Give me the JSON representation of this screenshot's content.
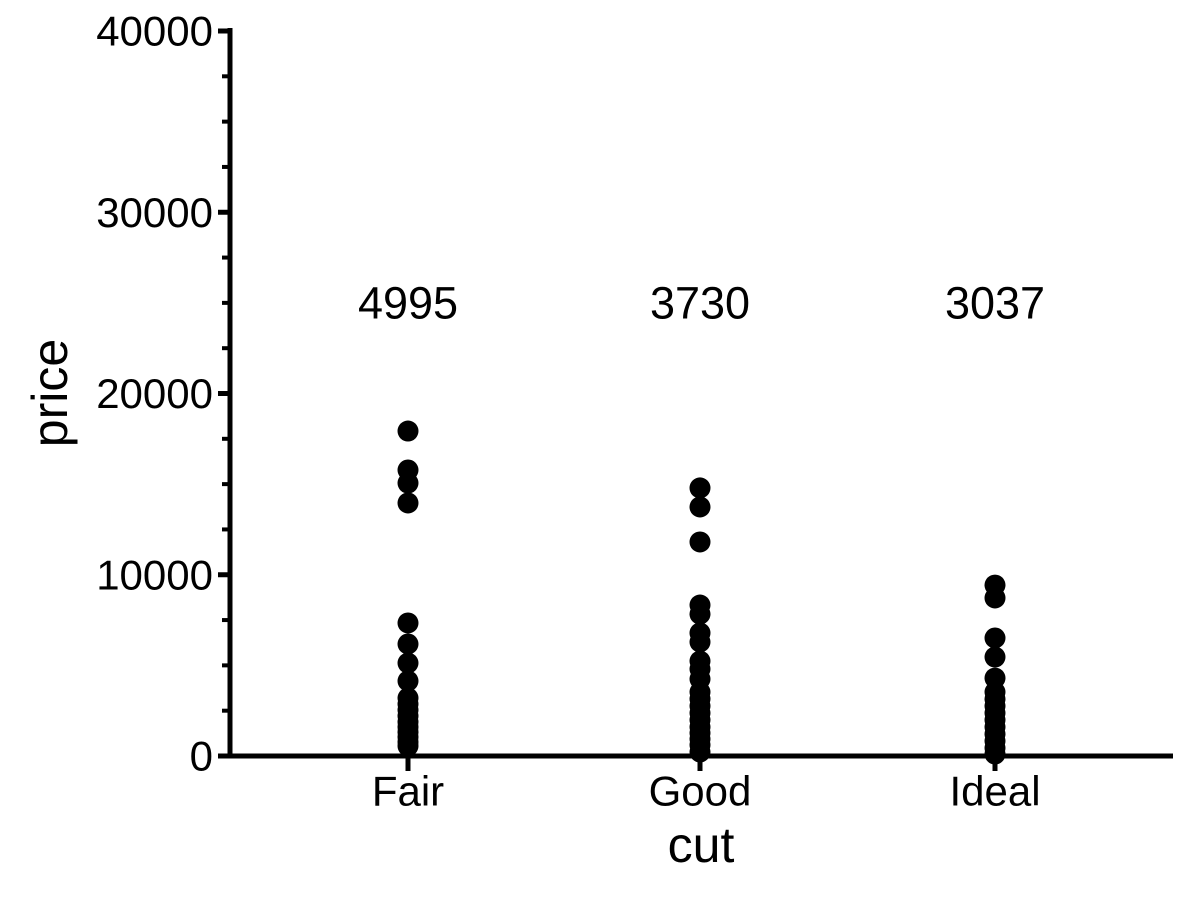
{
  "chart_data": {
    "type": "scatter",
    "subtype": "strip-plot",
    "title": "",
    "xlabel": "cut",
    "ylabel": "price",
    "categories": [
      "Fair",
      "Good",
      "Ideal"
    ],
    "annotations": [
      {
        "category": "Fair",
        "label": "4995"
      },
      {
        "category": "Good",
        "label": "3730"
      },
      {
        "category": "Ideal",
        "label": "3037"
      }
    ],
    "annotation_y_value": 25000,
    "ylim": [
      0,
      40000
    ],
    "yticks": [
      0,
      10000,
      20000,
      30000,
      40000
    ],
    "ytick_labels": [
      "0",
      "10000",
      "20000",
      "30000",
      "40000"
    ],
    "y_minor_step": 2500,
    "grid": false,
    "legend": "none",
    "point_color": "#000000",
    "axis_color": "#000000",
    "background_color": "#ffffff",
    "series": [
      {
        "name": "Fair",
        "values": [
          17930,
          15780,
          15060,
          13960,
          7340,
          6180,
          5130,
          4140,
          3200,
          2870,
          2540,
          2210,
          1880,
          1600,
          1320,
          1050,
          770,
          550
        ]
      },
      {
        "name": "Good",
        "values": [
          14790,
          13740,
          11810,
          8330,
          7830,
          6790,
          6290,
          5240,
          4800,
          4250,
          3530,
          3150,
          2760,
          2370,
          1990,
          1600,
          1270,
          940,
          610,
          220
        ]
      },
      {
        "name": "Ideal",
        "values": [
          9430,
          8720,
          6510,
          5460,
          4300,
          3530,
          3140,
          2760,
          2370,
          1990,
          1600,
          1210,
          830,
          440,
          110
        ]
      }
    ]
  }
}
